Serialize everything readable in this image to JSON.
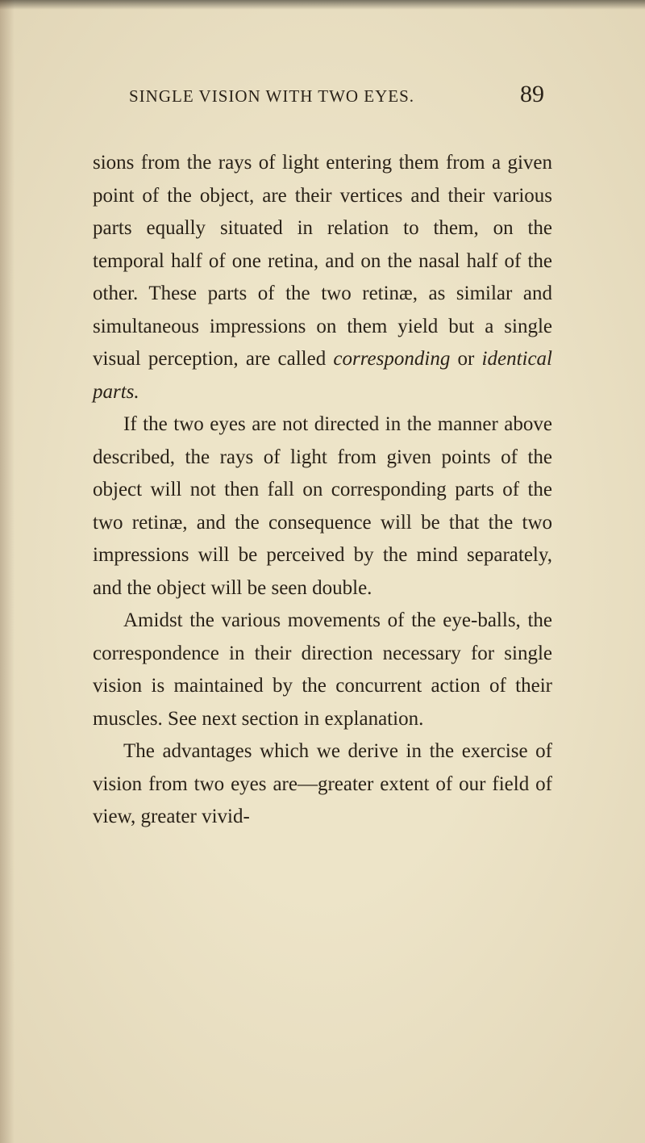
{
  "colors": {
    "background": "#ede4c8",
    "text": "#2a2218"
  },
  "typography": {
    "body_fontsize": 25,
    "body_lineheight": 1.62,
    "header_fontsize": 21,
    "pagenum_fontsize": 30,
    "font_family": "Century, Georgia, serif"
  },
  "header": {
    "title": "SINGLE VISION WITH TWO EYES.",
    "page_number": "89"
  },
  "paragraphs": {
    "p1_pre": "sions from the rays of light entering them from a given point of the object, are their vertices and their various parts equally situated in relation to them, on the temporal half of one retina, and on the nasal half of the other. These parts of the two retinæ, as similar and simultaneous impressions on them yield but a single visual perception, are called ",
    "p1_em1": "corresponding",
    "p1_mid": " or ",
    "p1_em2": "identical parts.",
    "p2": "If the two eyes are not directed in the manner above described, the rays of light from given points of the object will not then fall on corresponding parts of the two retinæ, and the consequence will be that the two impressions will be perceived by the mind separately, and the object will be seen double.",
    "p3": "Amidst the various movements of the eye-balls, the correspondence in their direction necessary for single vision is maintained by the concurrent action of their muscles. See next section in explanation.",
    "p4": "The advantages which we derive in the exercise of vision from two eyes are—greater extent of our field of view, greater vivid-"
  }
}
